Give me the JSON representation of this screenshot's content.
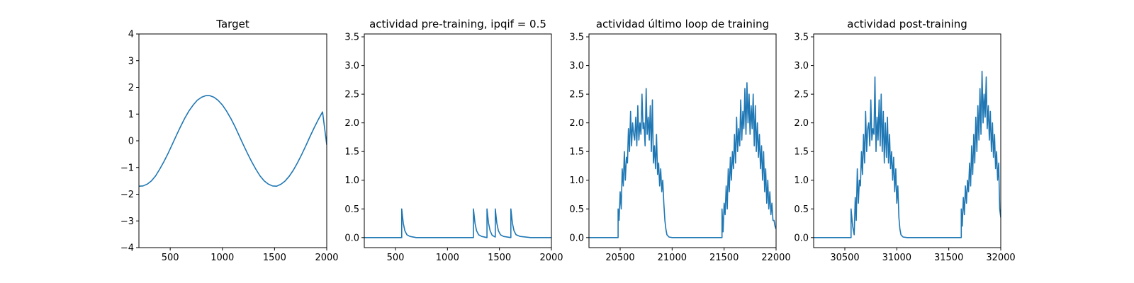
{
  "figure": {
    "background": "#ffffff",
    "line_color": "#1f77b4"
  },
  "chart_data": [
    {
      "type": "line",
      "title": "Target",
      "xlabel": "",
      "ylabel": "",
      "xlim": [
        200,
        2000
      ],
      "ylim": [
        -4,
        4
      ],
      "xticks": [
        500,
        1000,
        1500,
        2000
      ],
      "xtick_labels": [
        "500",
        "1000",
        "1500",
        "2000"
      ],
      "yticks": [
        -4,
        -3,
        -2,
        -1,
        0,
        1,
        2,
        3,
        4
      ],
      "ytick_labels": [
        "−4",
        "−3",
        "−2",
        "−1",
        "0",
        "1",
        "2",
        "3",
        "4"
      ],
      "grid": false,
      "series": [
        {
          "color": "#1f77b4",
          "x": [
            200,
            240,
            280,
            320,
            360,
            400,
            440,
            480,
            520,
            560,
            600,
            640,
            680,
            720,
            760,
            800,
            840,
            880,
            920,
            960,
            1000,
            1040,
            1080,
            1120,
            1160,
            1200,
            1240,
            1280,
            1320,
            1360,
            1400,
            1440,
            1480,
            1520,
            1560,
            1600,
            1640,
            1680,
            1720,
            1760,
            1800,
            1840,
            1880,
            1920,
            1960,
            2000
          ],
          "y": [
            -1.7,
            -1.69,
            -1.62,
            -1.5,
            -1.31,
            -1.06,
            -0.78,
            -0.47,
            -0.13,
            0.21,
            0.54,
            0.85,
            1.12,
            1.34,
            1.52,
            1.63,
            1.69,
            1.69,
            1.63,
            1.51,
            1.34,
            1.11,
            0.84,
            0.54,
            0.2,
            -0.14,
            -0.47,
            -0.78,
            -1.06,
            -1.31,
            -1.5,
            -1.62,
            -1.69,
            -1.7,
            -1.63,
            -1.51,
            -1.33,
            -1.1,
            -0.82,
            -0.51,
            -0.18,
            0.16,
            0.49,
            0.8,
            1.08,
            -0.15
          ]
        }
      ]
    },
    {
      "type": "line",
      "title": "actividad pre-training, ipqif = 0.5",
      "xlabel": "",
      "ylabel": "",
      "xlim": [
        200,
        2000
      ],
      "ylim": [
        -0.175,
        3.55
      ],
      "xticks": [
        500,
        1000,
        1500,
        2000
      ],
      "xtick_labels": [
        "500",
        "1000",
        "1500",
        "2000"
      ],
      "yticks": [
        0.0,
        0.5,
        1.0,
        1.5,
        2.0,
        2.5,
        3.0,
        3.5
      ],
      "ytick_labels": [
        "0.0",
        "0.5",
        "1.0",
        "1.5",
        "2.0",
        "2.5",
        "3.0",
        "3.5"
      ],
      "grid": false,
      "series": [
        {
          "color": "#1f77b4",
          "x": [
            200,
            560,
            560,
            575,
            590,
            610,
            640,
            700,
            1250,
            1250,
            1265,
            1280,
            1300,
            1330,
            1380,
            1380,
            1395,
            1410,
            1430,
            1460,
            1460,
            1475,
            1490,
            1510,
            1540,
            1610,
            1610,
            1625,
            1640,
            1660,
            1700,
            1800,
            2000
          ],
          "y": [
            0,
            0,
            0.5,
            0.25,
            0.12,
            0.05,
            0.02,
            0,
            0,
            0.5,
            0.25,
            0.12,
            0.05,
            0.02,
            0,
            0.5,
            0.25,
            0.12,
            0.04,
            0.01,
            0.5,
            0.25,
            0.12,
            0.05,
            0.02,
            0,
            0.5,
            0.25,
            0.12,
            0.05,
            0.02,
            0,
            0
          ]
        }
      ]
    },
    {
      "type": "line",
      "title": "actividad último loop de training",
      "xlabel": "",
      "ylabel": "",
      "xlim": [
        20200,
        22000
      ],
      "ylim": [
        -0.175,
        3.55
      ],
      "xticks": [
        20500,
        21000,
        21500,
        22000
      ],
      "xtick_labels": [
        "20500",
        "21000",
        "21500",
        "22000"
      ],
      "yticks": [
        0.0,
        0.5,
        1.0,
        1.5,
        2.0,
        2.5,
        3.0,
        3.5
      ],
      "ytick_labels": [
        "0.0",
        "0.5",
        "1.0",
        "1.5",
        "2.0",
        "2.5",
        "3.0",
        "3.5"
      ],
      "grid": false,
      "series": [
        {
          "color": "#1f77b4",
          "x": [
            20200,
            20480,
            20480,
            20490,
            20500,
            20510,
            20520,
            20530,
            20540,
            20550,
            20560,
            20570,
            20580,
            20590,
            20600,
            20610,
            20620,
            20630,
            20640,
            20650,
            20660,
            20670,
            20680,
            20690,
            20700,
            20710,
            20720,
            20730,
            20740,
            20750,
            20760,
            20770,
            20780,
            20790,
            20800,
            20810,
            20820,
            20830,
            20840,
            20850,
            20860,
            20870,
            20880,
            20890,
            20900,
            20910,
            20920,
            20930,
            20940,
            20950,
            20970,
            21000,
            21050,
            21100,
            21480,
            21480,
            21490,
            21500,
            21510,
            21520,
            21530,
            21540,
            21550,
            21560,
            21570,
            21580,
            21590,
            21600,
            21610,
            21620,
            21630,
            21640,
            21650,
            21660,
            21670,
            21680,
            21690,
            21700,
            21710,
            21720,
            21730,
            21740,
            21750,
            21760,
            21770,
            21780,
            21790,
            21800,
            21810,
            21820,
            21830,
            21840,
            21850,
            21860,
            21870,
            21880,
            21890,
            21900,
            21910,
            21920,
            21930,
            21940,
            21950,
            21960,
            21970,
            21980,
            21990,
            22000
          ],
          "y": [
            0,
            0,
            0.5,
            0.3,
            0.8,
            0.5,
            1.2,
            0.9,
            1.5,
            1.0,
            1.4,
            1.3,
            1.9,
            1.5,
            2.2,
            1.6,
            2.0,
            1.8,
            1.7,
            2.1,
            1.6,
            2.3,
            1.7,
            2.0,
            1.8,
            2.5,
            1.9,
            2.0,
            1.6,
            2.6,
            1.8,
            2.1,
            1.7,
            2.3,
            1.5,
            2.4,
            1.3,
            1.6,
            1.2,
            1.8,
            1.1,
            1.3,
            0.9,
            1.2,
            0.8,
            1.0,
            0.6,
            0.3,
            0.15,
            0.05,
            0.01,
            0,
            0,
            0,
            0,
            0.5,
            0.1,
            0.6,
            0.4,
            0.9,
            0.5,
            1.2,
            0.8,
            1.4,
            1.0,
            1.5,
            1.2,
            1.8,
            1.3,
            2.1,
            1.5,
            1.9,
            1.6,
            2.4,
            1.7,
            2.2,
            1.9,
            2.6,
            1.8,
            2.7,
            2.0,
            2.5,
            1.8,
            2.3,
            1.9,
            2.5,
            1.6,
            2.3,
            1.5,
            2.0,
            1.4,
            1.8,
            1.2,
            1.6,
            1.0,
            1.5,
            0.8,
            1.2,
            0.6,
            1.0,
            0.5,
            0.8,
            0.4,
            0.6,
            0.3,
            0.3,
            0.2,
            0.15
          ]
        }
      ]
    },
    {
      "type": "line",
      "title": "actividad post-training",
      "xlabel": "",
      "ylabel": "",
      "xlim": [
        30200,
        32000
      ],
      "ylim": [
        -0.175,
        3.55
      ],
      "xticks": [
        30500,
        31000,
        31500,
        32000
      ],
      "xtick_labels": [
        "30500",
        "31000",
        "31500",
        "32000"
      ],
      "yticks": [
        0.0,
        0.5,
        1.0,
        1.5,
        2.0,
        2.5,
        3.0,
        3.5
      ],
      "ytick_labels": [
        "0.0",
        "0.5",
        "1.0",
        "1.5",
        "2.0",
        "2.5",
        "3.0",
        "3.5"
      ],
      "grid": false,
      "series": [
        {
          "color": "#1f77b4",
          "x": [
            30200,
            30560,
            30560,
            30575,
            30590,
            30600,
            30610,
            30620,
            30630,
            30640,
            30650,
            30660,
            30670,
            30680,
            30690,
            30700,
            30710,
            30720,
            30730,
            30740,
            30750,
            30760,
            30770,
            30780,
            30790,
            30800,
            30810,
            30820,
            30830,
            30840,
            30850,
            30860,
            30870,
            30880,
            30890,
            30900,
            30910,
            30920,
            30930,
            30940,
            30950,
            30960,
            30970,
            30980,
            30990,
            31000,
            31010,
            31020,
            31030,
            31040,
            31060,
            31100,
            31200,
            31620,
            31620,
            31630,
            31640,
            31650,
            31660,
            31670,
            31680,
            31690,
            31700,
            31710,
            31720,
            31730,
            31740,
            31750,
            31760,
            31770,
            31780,
            31790,
            31800,
            31810,
            31820,
            31830,
            31840,
            31850,
            31860,
            31870,
            31880,
            31890,
            31900,
            31910,
            31920,
            31930,
            31940,
            31950,
            31960,
            31970,
            31980,
            31990,
            32000
          ],
          "y": [
            0,
            0,
            0.5,
            0.2,
            0.05,
            0.7,
            0.3,
            1.2,
            0.6,
            1.0,
            0.9,
            1.5,
            1.1,
            1.8,
            1.3,
            2.2,
            1.5,
            1.9,
            2.0,
            1.6,
            2.4,
            1.7,
            1.9,
            1.8,
            2.8,
            1.5,
            2.1,
            1.7,
            2.4,
            1.6,
            2.5,
            1.5,
            2.2,
            1.3,
            2.0,
            1.4,
            2.1,
            1.3,
            1.8,
            1.2,
            1.5,
            1.0,
            1.4,
            0.8,
            1.2,
            0.6,
            0.9,
            0.35,
            0.15,
            0.05,
            0.01,
            0,
            0,
            0,
            0.5,
            0.2,
            0.7,
            0.4,
            0.9,
            0.6,
            1.0,
            0.8,
            1.3,
            0.9,
            1.6,
            1.1,
            1.8,
            1.3,
            2.1,
            1.5,
            2.3,
            1.7,
            2.6,
            1.8,
            2.9,
            2.0,
            2.5,
            2.1,
            2.8,
            1.9,
            2.3,
            1.7,
            2.2,
            1.5,
            2.0,
            1.4,
            1.8,
            1.2,
            1.5,
            1.0,
            1.3,
            0.5,
            0.35
          ]
        }
      ]
    }
  ]
}
